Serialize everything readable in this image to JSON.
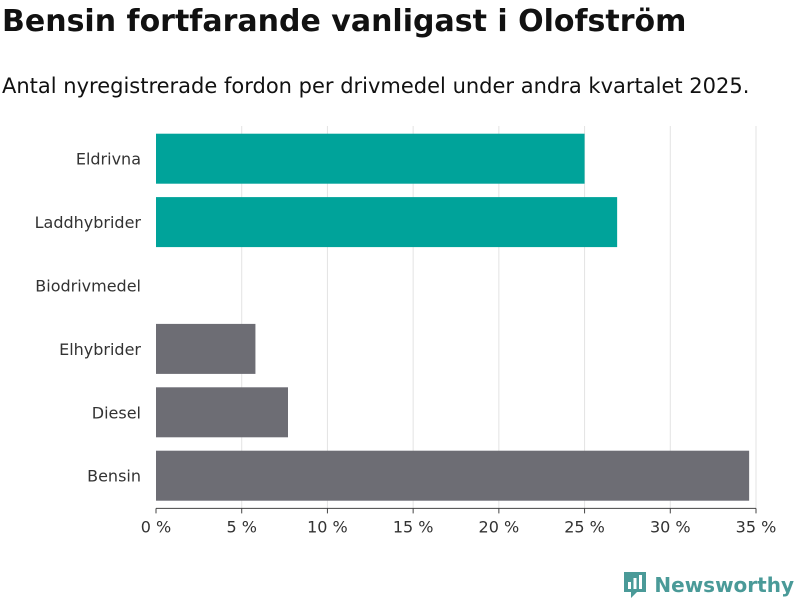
{
  "header": {
    "title": "Bensin fortfarande vanligast i Olofström",
    "subtitle": "Antal nyregistrerade fordon per drivmedel under andra kvartalet 2025."
  },
  "brand": {
    "name": "Newsworthy",
    "icon": "newsworthy-logo-icon",
    "color": "#4a9a98"
  },
  "chart_data": {
    "type": "bar",
    "orientation": "horizontal",
    "categories": [
      "Eldrivna",
      "Laddhybrider",
      "Biodrivmedel",
      "Elhybrider",
      "Diesel",
      "Bensin"
    ],
    "values": [
      25.0,
      26.9,
      0,
      5.8,
      7.7,
      34.6
    ],
    "bar_colors": [
      "#00a39a",
      "#00a39a",
      "#00a39a",
      "#6d6d74",
      "#6d6d74",
      "#6d6d74"
    ],
    "title": "Bensin fortfarande vanligast i Olofström",
    "subtitle": "Antal nyregistrerade fordon per drivmedel under andra kvartalet 2025.",
    "xlabel": "",
    "ylabel": "",
    "xlim": [
      0,
      35
    ],
    "xticks": [
      0,
      5,
      10,
      15,
      20,
      25,
      30,
      35
    ],
    "xtick_labels": [
      "0 %",
      "5 %",
      "10 %",
      "15 %",
      "20 %",
      "25 %",
      "30 %",
      "35 %"
    ],
    "grid": "vertical",
    "legend": "none"
  }
}
